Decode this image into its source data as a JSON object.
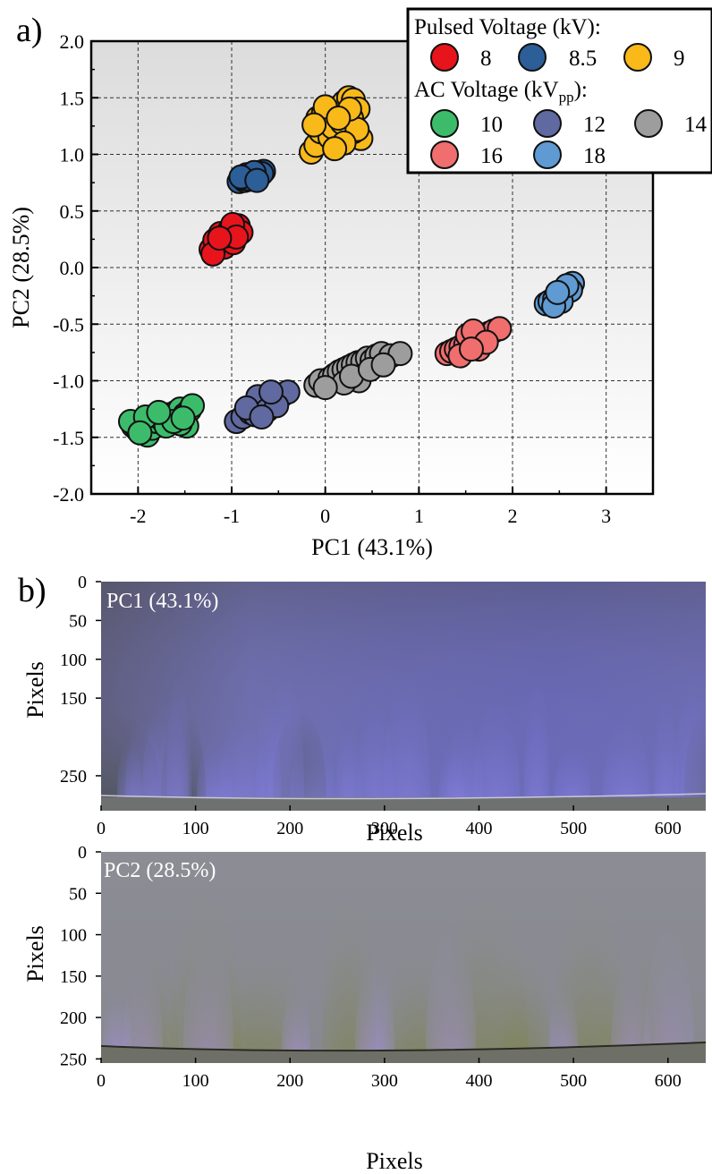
{
  "panel_labels": {
    "a": "a)",
    "b": "b)"
  },
  "chart_data": [
    {
      "type": "scatter",
      "xlabel": "PC1 (43.1%)",
      "ylabel": "PC2 (28.5%)",
      "xlim": [
        -2.5,
        3.5
      ],
      "ylim": [
        -2.0,
        2.0
      ],
      "xticks": [
        "-2",
        "-1",
        "0",
        "1",
        "2",
        "3"
      ],
      "yticks": [
        "2.0",
        "1.5",
        "1.0",
        "0.5",
        "0.0",
        "-0.5",
        "-1.0",
        "-1.5",
        "-2.0"
      ],
      "grid": true,
      "legend_placement": "top-right",
      "legend": {
        "group1_title": "Pulsed Voltage (kV):",
        "group2_title_main": "AC Voltage (kV",
        "group2_title_sub": "pp",
        "group2_title_end": "):"
      },
      "series": [
        {
          "name": "8",
          "group": "Pulsed",
          "color": "#e8141b",
          "center": [
            -1.05,
            0.28
          ],
          "spread": [
            0.14,
            0.06
          ],
          "points": [
            [
              -1.22,
              0.16
            ],
            [
              -1.15,
              0.2
            ],
            [
              -1.1,
              0.22
            ],
            [
              -1.05,
              0.26
            ],
            [
              -1.0,
              0.3
            ],
            [
              -0.96,
              0.34
            ],
            [
              -0.93,
              0.37
            ],
            [
              -1.18,
              0.24
            ],
            [
              -1.08,
              0.18
            ],
            [
              -0.98,
              0.22
            ],
            [
              -1.12,
              0.3
            ],
            [
              -1.02,
              0.33
            ],
            [
              -0.9,
              0.31
            ],
            [
              -1.2,
              0.12
            ],
            [
              -1.06,
              0.28
            ],
            [
              -0.99,
              0.38
            ],
            [
              -0.95,
              0.27
            ],
            [
              -1.13,
              0.26
            ]
          ]
        },
        {
          "name": "8.5",
          "group": "Pulsed",
          "color": "#2c5e98",
          "center": [
            -0.78,
            0.8
          ],
          "spread": [
            0.12,
            0.04
          ],
          "points": [
            [
              -0.92,
              0.76
            ],
            [
              -0.86,
              0.77
            ],
            [
              -0.82,
              0.79
            ],
            [
              -0.78,
              0.8
            ],
            [
              -0.74,
              0.82
            ],
            [
              -0.7,
              0.84
            ],
            [
              -0.66,
              0.85
            ],
            [
              -0.88,
              0.79
            ],
            [
              -0.8,
              0.78
            ],
            [
              -0.72,
              0.8
            ],
            [
              -0.68,
              0.83
            ],
            [
              -0.84,
              0.82
            ],
            [
              -0.76,
              0.84
            ],
            [
              -0.9,
              0.8
            ],
            [
              -0.73,
              0.77
            ]
          ]
        },
        {
          "name": "9",
          "group": "Pulsed",
          "color": "#f8b919",
          "center": [
            0.15,
            1.25
          ],
          "spread": [
            0.2,
            0.2
          ],
          "points": [
            [
              -0.15,
              1.02
            ],
            [
              -0.1,
              1.08
            ],
            [
              -0.05,
              1.2
            ],
            [
              0.0,
              1.25
            ],
            [
              0.05,
              1.3
            ],
            [
              0.1,
              1.38
            ],
            [
              0.15,
              1.42
            ],
            [
              0.2,
              1.46
            ],
            [
              0.25,
              1.5
            ],
            [
              0.3,
              1.48
            ],
            [
              0.35,
              1.4
            ],
            [
              0.38,
              1.14
            ],
            [
              0.3,
              1.2
            ],
            [
              0.22,
              1.18
            ],
            [
              0.12,
              1.12
            ],
            [
              0.05,
              1.15
            ],
            [
              -0.08,
              1.32
            ],
            [
              -0.02,
              1.36
            ],
            [
              0.08,
              1.24
            ],
            [
              0.18,
              1.28
            ],
            [
              0.28,
              1.32
            ],
            [
              0.34,
              1.22
            ],
            [
              0.0,
              1.42
            ],
            [
              0.2,
              1.1
            ],
            [
              0.26,
              1.4
            ],
            [
              -0.12,
              1.26
            ],
            [
              0.14,
              1.32
            ],
            [
              0.1,
              1.05
            ]
          ]
        },
        {
          "name": "10",
          "group": "AC",
          "color": "#3cbc6a",
          "center": [
            -1.75,
            -1.35
          ],
          "spread": [
            0.3,
            0.08
          ],
          "points": [
            [
              -2.05,
              -1.4
            ],
            [
              -2.0,
              -1.44
            ],
            [
              -1.95,
              -1.38
            ],
            [
              -1.9,
              -1.48
            ],
            [
              -1.85,
              -1.42
            ],
            [
              -1.8,
              -1.36
            ],
            [
              -1.75,
              -1.34
            ],
            [
              -1.7,
              -1.3
            ],
            [
              -1.65,
              -1.32
            ],
            [
              -1.6,
              -1.28
            ],
            [
              -1.55,
              -1.25
            ],
            [
              -1.5,
              -1.3
            ],
            [
              -1.45,
              -1.26
            ],
            [
              -1.42,
              -1.22
            ],
            [
              -1.48,
              -1.4
            ],
            [
              -1.55,
              -1.38
            ],
            [
              -1.7,
              -1.4
            ],
            [
              -2.08,
              -1.36
            ],
            [
              -1.92,
              -1.32
            ],
            [
              -1.62,
              -1.36
            ],
            [
              -1.78,
              -1.28
            ],
            [
              -1.98,
              -1.46
            ],
            [
              -1.52,
              -1.33
            ]
          ]
        },
        {
          "name": "12",
          "group": "AC",
          "color": "#606aa0",
          "center": [
            -0.6,
            -1.22
          ],
          "spread": [
            0.2,
            0.08
          ],
          "points": [
            [
              -0.95,
              -1.36
            ],
            [
              -0.88,
              -1.32
            ],
            [
              -0.8,
              -1.28
            ],
            [
              -0.75,
              -1.3
            ],
            [
              -0.7,
              -1.24
            ],
            [
              -0.65,
              -1.2
            ],
            [
              -0.6,
              -1.18
            ],
            [
              -0.55,
              -1.14
            ],
            [
              -0.5,
              -1.16
            ],
            [
              -0.45,
              -1.12
            ],
            [
              -0.4,
              -1.1
            ],
            [
              -0.72,
              -1.14
            ],
            [
              -0.62,
              -1.26
            ],
            [
              -0.52,
              -1.22
            ],
            [
              -0.84,
              -1.24
            ],
            [
              -0.68,
              -1.32
            ],
            [
              -0.58,
              -1.1
            ]
          ]
        },
        {
          "name": "14",
          "group": "AC",
          "color": "#9d9d9d",
          "center": [
            0.4,
            -0.9
          ],
          "spread": [
            0.3,
            0.1
          ],
          "points": [
            [
              -0.1,
              -1.04
            ],
            [
              -0.05,
              -1.0
            ],
            [
              0.05,
              -0.98
            ],
            [
              0.1,
              -0.95
            ],
            [
              0.15,
              -0.92
            ],
            [
              0.2,
              -0.9
            ],
            [
              0.25,
              -0.88
            ],
            [
              0.3,
              -0.86
            ],
            [
              0.35,
              -0.84
            ],
            [
              0.4,
              -0.83
            ],
            [
              0.45,
              -0.8
            ],
            [
              0.5,
              -0.82
            ],
            [
              0.55,
              -0.78
            ],
            [
              0.6,
              -0.76
            ],
            [
              0.7,
              -0.78
            ],
            [
              0.8,
              -0.76
            ],
            [
              0.36,
              -1.0
            ],
            [
              0.2,
              -1.02
            ],
            [
              0.0,
              -1.06
            ],
            [
              0.28,
              -0.96
            ],
            [
              0.48,
              -0.9
            ],
            [
              0.62,
              -0.86
            ]
          ]
        },
        {
          "name": "16",
          "group": "AC",
          "color": "#f06e6e",
          "center": [
            1.6,
            -0.65
          ],
          "spread": [
            0.2,
            0.08
          ],
          "points": [
            [
              1.3,
              -0.76
            ],
            [
              1.35,
              -0.74
            ],
            [
              1.4,
              -0.72
            ],
            [
              1.45,
              -0.7
            ],
            [
              1.5,
              -0.68
            ],
            [
              1.55,
              -0.66
            ],
            [
              1.6,
              -0.64
            ],
            [
              1.65,
              -0.62
            ],
            [
              1.7,
              -0.6
            ],
            [
              1.75,
              -0.58
            ],
            [
              1.8,
              -0.56
            ],
            [
              1.86,
              -0.54
            ],
            [
              1.52,
              -0.6
            ],
            [
              1.58,
              -0.56
            ],
            [
              1.44,
              -0.78
            ],
            [
              1.64,
              -0.72
            ],
            [
              1.72,
              -0.66
            ],
            [
              1.56,
              -0.72
            ]
          ]
        },
        {
          "name": "18",
          "group": "AC",
          "color": "#5f9ad2",
          "center": [
            2.5,
            -0.25
          ],
          "spread": [
            0.1,
            0.06
          ],
          "points": [
            [
              2.36,
              -0.32
            ],
            [
              2.4,
              -0.3
            ],
            [
              2.45,
              -0.28
            ],
            [
              2.5,
              -0.25
            ],
            [
              2.55,
              -0.22
            ],
            [
              2.6,
              -0.18
            ],
            [
              2.64,
              -0.14
            ],
            [
              2.62,
              -0.2
            ],
            [
              2.52,
              -0.3
            ],
            [
              2.44,
              -0.34
            ],
            [
              2.58,
              -0.16
            ],
            [
              2.48,
              -0.22
            ]
          ]
        }
      ]
    },
    {
      "type": "heatmap",
      "label": "PC1 (43.1%)",
      "xlabel": "Pixels",
      "ylabel": "Pixels",
      "xlim": [
        0,
        640
      ],
      "ylim": [
        0,
        295
      ],
      "xticks": [
        "0",
        "100",
        "200",
        "300",
        "400",
        "500",
        "600"
      ],
      "yticks": [
        "0",
        "50",
        "100",
        "150",
        "250"
      ],
      "base_color": "#6c6da8",
      "floor_color": "#6f7070"
    },
    {
      "type": "heatmap",
      "label": "PC2 (28.5%)",
      "xlabel": "Pixels",
      "ylabel": "Pixels",
      "xlim": [
        0,
        640
      ],
      "ylim": [
        0,
        255
      ],
      "xticks": [
        "0",
        "100",
        "200",
        "300",
        "400",
        "500",
        "600"
      ],
      "yticks": [
        "0",
        "50",
        "100",
        "150",
        "200",
        "250"
      ],
      "base_color": "#8a8c94",
      "floor_color": "#6e7068"
    }
  ]
}
